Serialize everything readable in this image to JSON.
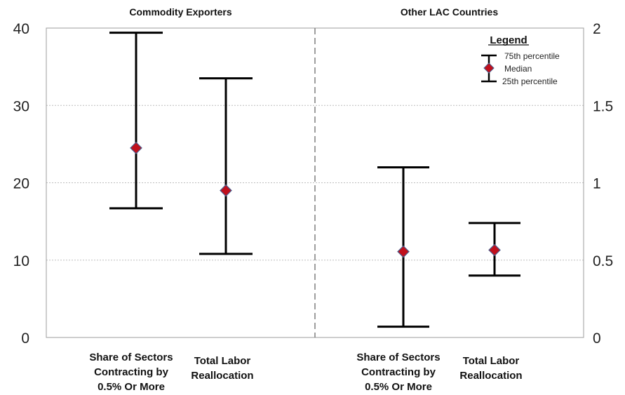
{
  "chart_data": {
    "type": "errorbar",
    "panels": [
      {
        "title": "Commodity Exporters",
        "axis": "left",
        "categories": [
          [
            "Share of Sectors",
            "Contracting by",
            "0.5% Or More"
          ],
          [
            "Total Labor",
            "Reallocation"
          ]
        ],
        "p75": [
          39.4,
          33.5
        ],
        "median": [
          24.5,
          19
        ],
        "p25": [
          16.7,
          10.8
        ]
      },
      {
        "title": "Other LAC Countries",
        "axis": "right",
        "categories": [
          [
            "Share of Sectors",
            "Contracting by",
            "0.5% Or More"
          ],
          [
            "Total Labor",
            "Reallocation"
          ]
        ],
        "p75": [
          1.1,
          0.74
        ],
        "median": [
          0.555,
          0.565
        ],
        "p25": [
          0.07,
          0.4
        ]
      }
    ],
    "left_axis": {
      "ylim": [
        0,
        40
      ],
      "ticks": [
        0,
        10,
        20,
        30,
        40
      ],
      "tick_labels": [
        "0",
        "10",
        "20",
        "30",
        "40"
      ]
    },
    "right_axis": {
      "ylim": [
        0,
        2
      ],
      "ticks": [
        0,
        0.5,
        1,
        1.5,
        2
      ],
      "tick_labels": [
        "0",
        "0.5",
        "1",
        "1.5",
        "2"
      ]
    },
    "grid": true,
    "legend": {
      "title": "Legend",
      "items": [
        "75th percentile",
        "Median",
        "25th percentile"
      ],
      "position": "top-right"
    },
    "colors": {
      "marker_fill": "#c0101c",
      "marker_edge": "#4a5a8a",
      "whisker": "#000000",
      "grid": "#bdbdbd",
      "divider": "#7f7f7f",
      "frame": "#9e9e9e"
    }
  }
}
